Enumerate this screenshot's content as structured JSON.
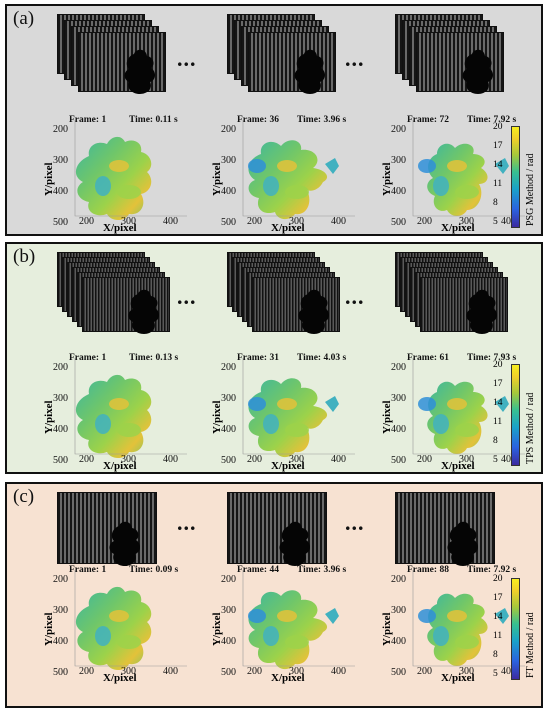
{
  "panels": [
    {
      "label": "(a)",
      "background": "#d9d9d9",
      "colorbar_title": "PSG Method / rad",
      "ellipsis": "...",
      "plots": [
        {
          "frame": "Frame: 1",
          "time": "Time: 0.11 s"
        },
        {
          "frame": "Frame: 36",
          "time": "Time: 3.96 s"
        },
        {
          "frame": "Frame: 72",
          "time": "Time: 7.92 s"
        }
      ]
    },
    {
      "label": "(b)",
      "background": "#e6eedd",
      "colorbar_title": "TPS Method / rad",
      "ellipsis": "...",
      "plots": [
        {
          "frame": "Frame: 1",
          "time": "Time: 0.13 s"
        },
        {
          "frame": "Frame: 31",
          "time": "Time: 4.03 s"
        },
        {
          "frame": "Frame: 61",
          "time": "Time: 7.93 s"
        }
      ]
    },
    {
      "label": "(c)",
      "background": "#f7e2d2",
      "colorbar_title": "FT Method / rad",
      "ellipsis": "...",
      "plots": [
        {
          "frame": "Frame: 1",
          "time": "Time: 0.09 s"
        },
        {
          "frame": "Frame: 44",
          "time": "Time: 3.96 s"
        },
        {
          "frame": "Frame: 88",
          "time": "Time: 7.92 s"
        }
      ]
    }
  ],
  "axes": {
    "xlabel": "X/pixel",
    "ylabel": "Y/pixel",
    "x_ticks": [
      "200",
      "300",
      "400"
    ],
    "y_ticks": [
      "200",
      "300",
      "400",
      "500"
    ]
  },
  "colorbar_ticks": [
    "20",
    "17",
    "14",
    "11",
    "8",
    "5"
  ],
  "colors": {
    "fringe_dark": "#151515",
    "fringe_light": "#6a6a6a",
    "colormap_low": "#3b2aa0",
    "colormap_mid": "#38c090",
    "colormap_high": "#f7ee1f"
  }
}
